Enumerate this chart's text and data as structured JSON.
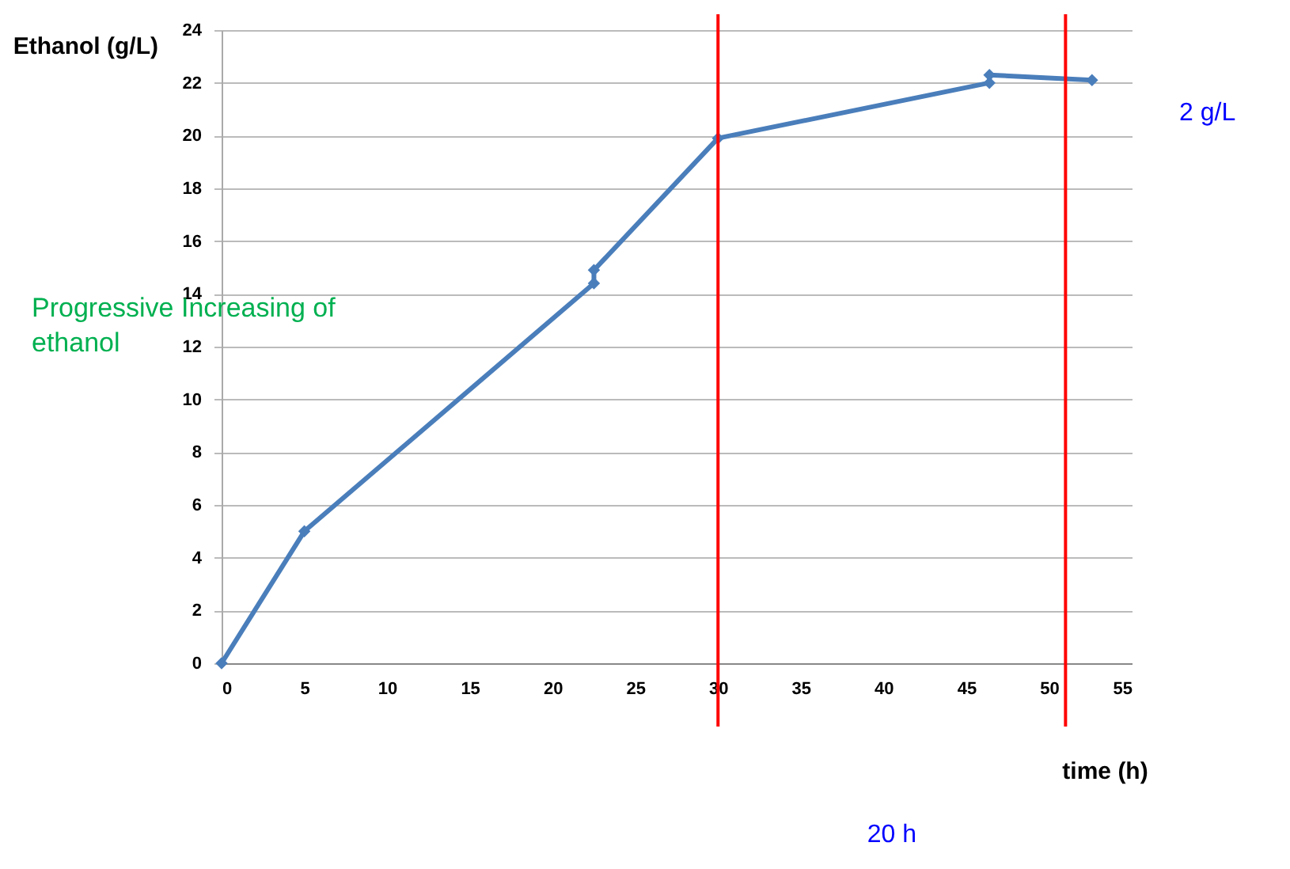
{
  "chart_data": {
    "type": "line",
    "xlabel": "time (h)",
    "ylabel": "Ethanol (g/L)",
    "x": [
      0,
      5,
      22.5,
      22.5,
      30,
      46.4,
      46.4,
      52.6
    ],
    "series": [
      {
        "color": "#4a7ebb",
        "values": [
          0,
          5,
          14.4,
          14.9,
          19.9,
          22.0,
          22.3,
          22.1
        ]
      }
    ],
    "xlim": [
      0,
      55
    ],
    "xticks": [
      0,
      5,
      10,
      15,
      20,
      25,
      30,
      35,
      40,
      45,
      50,
      55
    ],
    "ylim": [
      0,
      24
    ],
    "yticks": [
      0,
      2,
      4,
      6,
      8,
      10,
      12,
      14,
      16,
      18,
      20,
      22,
      24
    ],
    "grid": "y",
    "marker": "diamond",
    "line_style": "solid",
    "ref_lines": [
      {
        "axis": "x",
        "value": 30,
        "color": "#ff0000"
      },
      {
        "axis": "x",
        "value": 51,
        "color": "#ff0000"
      }
    ],
    "annotations": [
      "Progressive Increasing  of ethanol",
      "2 g/L",
      "20 h"
    ]
  }
}
